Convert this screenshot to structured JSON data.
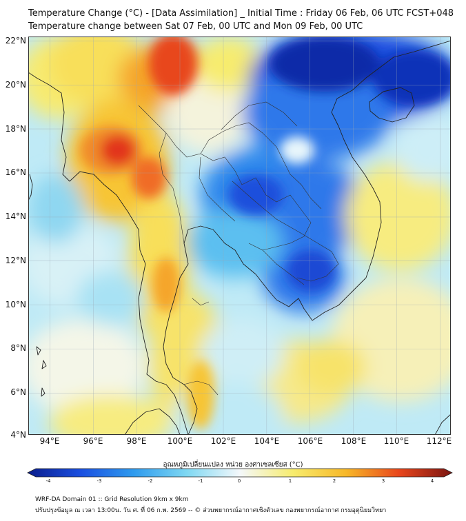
{
  "header": {
    "title_line1": "Temperature Change (°C) - [Data Assimilation] _ Initial Time : Friday 06 Feb, 06 UTC FCST+048",
    "title_line2": "Temperature change between Sat 07 Feb, 00 UTC and Mon 09 Feb, 00 UTC"
  },
  "map": {
    "lat_labels": [
      "22°N",
      "20°N",
      "18°N",
      "16°N",
      "14°N",
      "12°N",
      "10°N",
      "8°N",
      "6°N",
      "4°N"
    ],
    "lon_labels": [
      "94°E",
      "96°E",
      "98°E",
      "100°E",
      "102°E",
      "104°E",
      "106°E",
      "108°E",
      "110°E",
      "112°E"
    ],
    "lat_range": [
      4,
      22.1
    ],
    "lon_range": [
      93,
      112.5
    ]
  },
  "colorbar": {
    "title": "อุณหภูมิเปลี่ยนแปลง หน่วย องศาเซลเซียส (°C)",
    "ticks": [
      "-4",
      "-3",
      "-2",
      "-1",
      "0",
      "1",
      "2",
      "3",
      "4"
    ],
    "colors": {
      "neg4": "#0a1d8c",
      "neg3": "#1a4fe0",
      "neg2": "#2f9bee",
      "neg1": "#7fd8f2",
      "zero": "#f4f8fb",
      "pos1": "#f7ec6e",
      "pos2": "#f7b829",
      "pos3": "#e8461c",
      "pos4": "#7a1410"
    }
  },
  "footer": {
    "line1": "WRF-DA Domain 01 :: Grid Resolution 9km x 9km",
    "line2": "ปรับปรุงข้อมูล ณ เวลา 13:00น. วัน ศ. ที่ 06 ก.พ. 2569 -- © ส่วนพยากรณ์อากาศเชิงตัวเลข กองพยากรณ์อากาศ กรมอุตุนิยมวิทยา"
  }
}
